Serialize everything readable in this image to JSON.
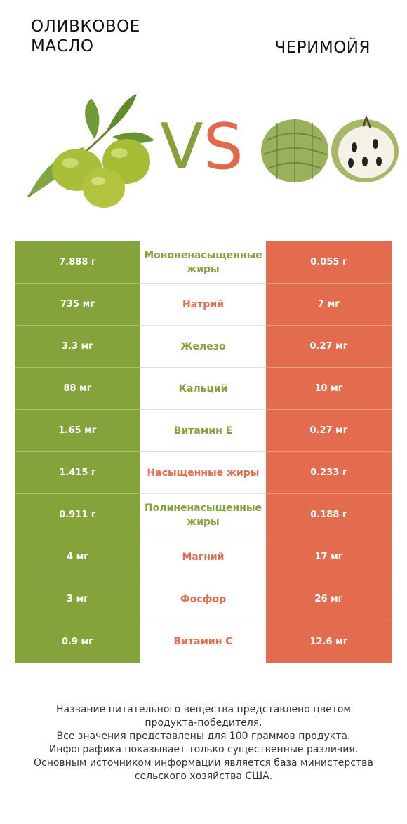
{
  "header": {
    "left_title": "ОЛИВКОВОЕ\nМАСЛО",
    "left_title_line1": "ОЛИВКОВОЕ",
    "left_title_line2": "МАСЛО",
    "right_title": "ЧЕРИМОЙЯ",
    "vs_v": "V",
    "vs_s": "S"
  },
  "colors": {
    "left_accent": "#84a33a",
    "right_accent": "#e36c4e"
  },
  "icons": {
    "left_image": "olive-icon",
    "right_image": "cherimoya-icon"
  },
  "rows": [
    {
      "left": "7.888 г",
      "nutrient": "Мононенасыщенные жиры",
      "right": "0.055 г",
      "winner": "left"
    },
    {
      "left": "735 мг",
      "nutrient": "Натрий",
      "right": "7 мг",
      "winner": "right"
    },
    {
      "left": "3.3 мг",
      "nutrient": "Железо",
      "right": "0.27 мг",
      "winner": "left"
    },
    {
      "left": "88 мг",
      "nutrient": "Кальций",
      "right": "10 мг",
      "winner": "left"
    },
    {
      "left": "1.65 мг",
      "nutrient": "Витамин E",
      "right": "0.27 мг",
      "winner": "left"
    },
    {
      "left": "1.415 г",
      "nutrient": "Насыщенные жиры",
      "right": "0.233 г",
      "winner": "right"
    },
    {
      "left": "0.911 г",
      "nutrient": "Полиненасыщенные жиры",
      "right": "0.188 г",
      "winner": "left"
    },
    {
      "left": "4 мг",
      "nutrient": "Магний",
      "right": "17 мг",
      "winner": "right"
    },
    {
      "left": "3 мг",
      "nutrient": "Фосфор",
      "right": "26 мг",
      "winner": "right"
    },
    {
      "left": "0.9 мг",
      "nutrient": "Витамин C",
      "right": "12.6 мг",
      "winner": "right"
    }
  ],
  "footer": {
    "line1": "Название питательного вещества представлено цветом",
    "line2": "продукта-победителя.",
    "line3": "Все значения представлены для 100 граммов продукта.",
    "line4": "Инфографика показывает только существенные различия.",
    "line5": "Основным источником информации является база министерства",
    "line6": "сельского хозяйства США."
  }
}
